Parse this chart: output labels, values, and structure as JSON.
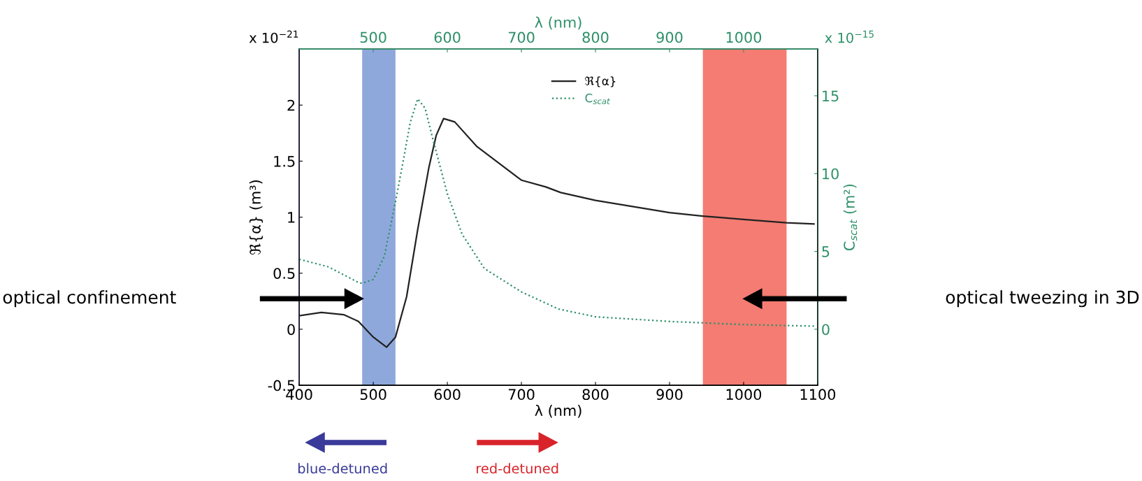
{
  "chart_data": {
    "type": "line",
    "xlabel": "λ (nm)",
    "x2label": "λ (nm)",
    "ylabel": "ℜ{α} (m³)",
    "y2label": "C$_{scat}$ (m²)",
    "xlim": [
      400,
      1100
    ],
    "xticks": [
      400,
      500,
      600,
      700,
      800,
      900,
      1000,
      1100
    ],
    "x2lim": [
      400,
      1100
    ],
    "x2ticks": [
      500,
      600,
      700,
      800,
      900,
      1000
    ],
    "ylim": [
      -0.5,
      2.5
    ],
    "yticks": [
      -0.5,
      0,
      0.5,
      1,
      1.5,
      2
    ],
    "y2lim": [
      -3.6,
      18
    ],
    "y2ticks": [
      0,
      5,
      10,
      15
    ],
    "series": [
      {
        "name": "ℜ{α}",
        "color": "#222222",
        "line_style": "solid",
        "x": [
          400,
          430,
          460,
          480,
          500,
          518,
          530,
          545,
          560,
          575,
          585,
          595,
          610,
          640,
          700,
          733,
          753,
          800,
          900,
          945,
          1000,
          1058,
          1095
        ],
        "values": [
          0.12,
          0.15,
          0.13,
          0.07,
          -0.07,
          -0.16,
          -0.07,
          0.29,
          0.89,
          1.44,
          1.73,
          1.88,
          1.85,
          1.63,
          1.33,
          1.27,
          1.22,
          1.15,
          1.04,
          1.01,
          0.98,
          0.95,
          0.94
        ]
      },
      {
        "name": "C$_{scat}$",
        "color": "#2e9068",
        "line_style": "dotted",
        "axis": "y2",
        "x": [
          400,
          440,
          480,
          485,
          500,
          515,
          530,
          540,
          550,
          560,
          570,
          580,
          600,
          620,
          650,
          700,
          750,
          800,
          900,
          1000,
          1095
        ],
        "values": [
          4.5,
          4.0,
          3.0,
          2.95,
          3.2,
          4.7,
          8.2,
          10.7,
          13.3,
          14.8,
          14.2,
          12.3,
          8.7,
          6.1,
          3.9,
          2.4,
          1.3,
          0.8,
          0.5,
          0.3,
          0.2
        ]
      }
    ],
    "bands": [
      {
        "axis": "x",
        "from": 485,
        "to": 530,
        "color": "#8fa8dc"
      },
      {
        "axis": "x",
        "from": 945,
        "to": 1058,
        "color": "#f47c72"
      }
    ],
    "legend": "top",
    "grid": false,
    "annotations": [
      "x 10$^{−21}$",
      "x 10$^{−15}$",
      "optical confinement",
      "optical tweezing in 3D",
      "blue-detuned",
      "red-detuned"
    ]
  }
}
